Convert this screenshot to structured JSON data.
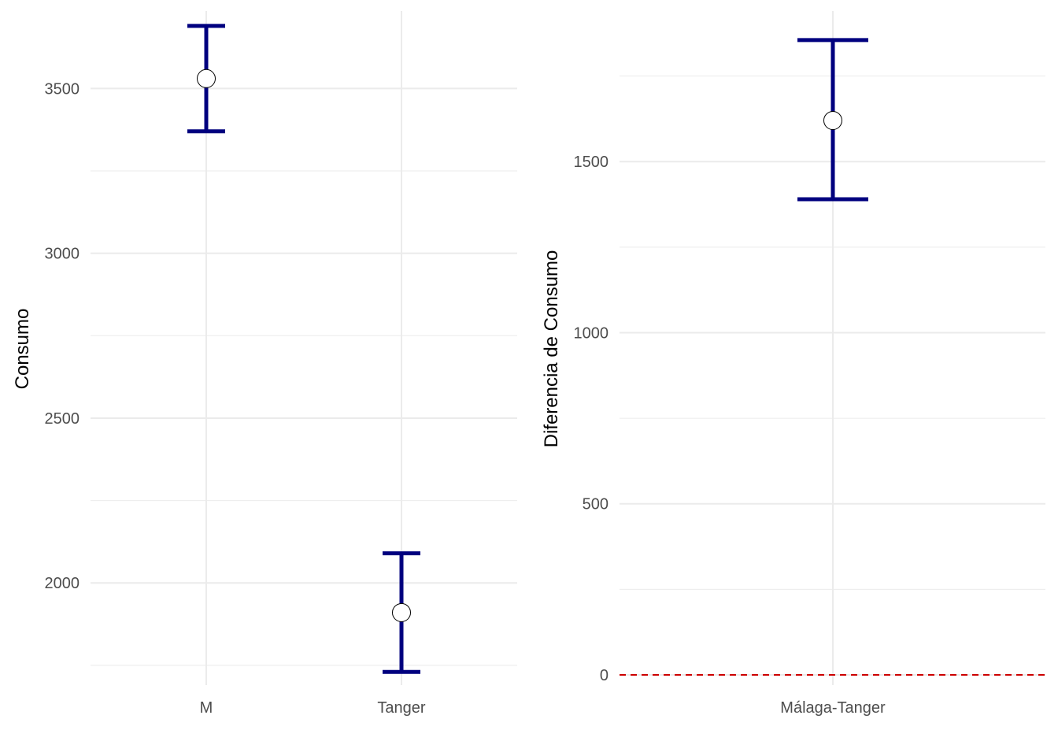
{
  "chart_data": [
    {
      "type": "errorbar",
      "xlabel": "",
      "ylabel": "Consumo",
      "categories": [
        "M",
        "Tanger"
      ],
      "series": [
        {
          "points": [
            {
              "x": "M",
              "y": 3530,
              "ymin": 3370,
              "ymax": 3690
            },
            {
              "x": "Tanger",
              "y": 1910,
              "ymin": 1730,
              "ymax": 2090
            }
          ]
        }
      ],
      "ylim": [
        1690,
        3735
      ],
      "yticks": [
        2000,
        2500,
        3000,
        3500
      ],
      "grid": true,
      "colors": {
        "errorbar": "#00007f",
        "point_fill": "#ffffff",
        "point_stroke": "#000000",
        "grid": "#ebebeb"
      }
    },
    {
      "type": "errorbar",
      "xlabel": "",
      "ylabel": "Diferencia de Consumo",
      "categories": [
        "Málaga-Tanger"
      ],
      "series": [
        {
          "points": [
            {
              "x": "Málaga-Tanger",
              "y": 1620,
              "ymin": 1390,
              "ymax": 1855
            }
          ]
        }
      ],
      "reference_line": {
        "y": 0,
        "style": "dashed",
        "color": "#cc0000"
      },
      "ylim": [
        -30,
        1940
      ],
      "yticks": [
        0,
        500,
        1000,
        1500
      ],
      "grid": true,
      "colors": {
        "errorbar": "#00007f",
        "point_fill": "#ffffff",
        "point_stroke": "#000000",
        "grid": "#ebebeb"
      }
    }
  ]
}
